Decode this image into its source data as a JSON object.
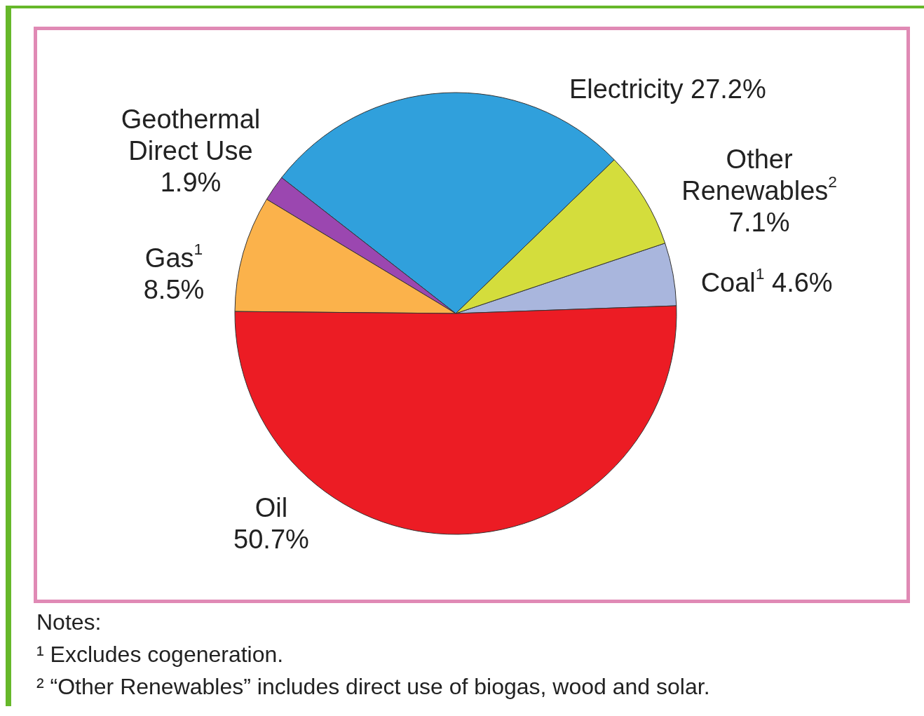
{
  "chart_data": {
    "type": "pie",
    "categories": [
      "Coal$^{1}$",
      "Other Renewables$^{2}$",
      "Electricity",
      "Geothermal Direct Use",
      "Gas$^{1}$",
      "Oil"
    ],
    "values": [
      4.6,
      7.1,
      27.2,
      1.9,
      8.5,
      50.7
    ],
    "value_labels": [
      "4.6%",
      "7.1%",
      "27.2%",
      "1.9%",
      "8.5%",
      "50.7%"
    ],
    "colors": [
      "#a9b6dd",
      "#d4dd3c",
      "#30a0dc",
      "#9b47b0",
      "#fbb24b",
      "#ec1c24"
    ],
    "annotations": [
      "Notes:",
      "¹  Excludes cogeneration.",
      "²  “Other Renewables” includes direct use of biogas, wood and solar."
    ]
  }
}
